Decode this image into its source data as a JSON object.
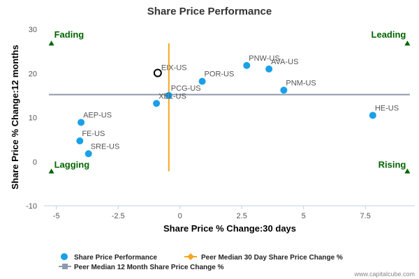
{
  "chart_data": {
    "type": "scatter",
    "title": "Share Price Performance",
    "xlabel": "Share Price % Change:30 days",
    "ylabel": "Share Price % Change:12 months",
    "xlim": [
      -5.5,
      9.5
    ],
    "ylim": [
      -10,
      30
    ],
    "x_ticks": [
      -5,
      -2.5,
      0,
      2.5,
      5,
      7.5
    ],
    "x_tick_labels": [
      "-5",
      "-2.5",
      "0",
      "2.5",
      "5",
      "7.5"
    ],
    "y_ticks": [
      -10,
      0,
      10,
      20,
      30
    ],
    "y_tick_labels": [
      "-10",
      "0",
      "10",
      "20",
      "30"
    ],
    "grid": false,
    "series": [
      {
        "name": "Share Price Performance",
        "color": "#1aa0e8",
        "points": [
          {
            "label": "PNW-US",
            "x": 2.7,
            "y": 21.8
          },
          {
            "label": "AVA-US",
            "x": 3.6,
            "y": 21.0
          },
          {
            "label": "POR-US",
            "x": 0.9,
            "y": 18.2
          },
          {
            "label": "PNM-US",
            "x": 4.2,
            "y": 16.2
          },
          {
            "label": "PCG-US",
            "x": -0.45,
            "y": 15.0
          },
          {
            "label": "XEL-US",
            "x": -0.95,
            "y": 13.2
          },
          {
            "label": "HE-US",
            "x": 7.8,
            "y": 10.5
          },
          {
            "label": "AEP-US",
            "x": -4.0,
            "y": 8.9
          },
          {
            "label": "FE-US",
            "x": -4.05,
            "y": 4.7
          },
          {
            "label": "SRE-US",
            "x": -3.7,
            "y": 1.8
          }
        ]
      },
      {
        "name": "Peer Median 30 Day Share Price Change %",
        "color": "#f5a623",
        "x": -0.45,
        "y_range": [
          -2.2,
          26.8
        ]
      },
      {
        "name": "Peer Median 12 Month Share Price Change %",
        "color": "#8e9aab",
        "y": 15.2,
        "x_range": [
          -5.3,
          9.3
        ]
      }
    ],
    "highlight": {
      "label": "EIX-US",
      "x": -0.9,
      "y": 20.1
    },
    "quadrants": {
      "top_left": "Fading",
      "top_right": "Leading",
      "bottom_left": "Lagging",
      "bottom_right": "Rising",
      "marker_color": "#006400"
    },
    "legend": {
      "placement": "bottom",
      "items": [
        "Share Price Performance",
        "Peer Median 30 Day Share Price Change %",
        "Peer Median 12 Month Share Price Change %"
      ]
    },
    "credit": "www.capitalcube.com"
  }
}
